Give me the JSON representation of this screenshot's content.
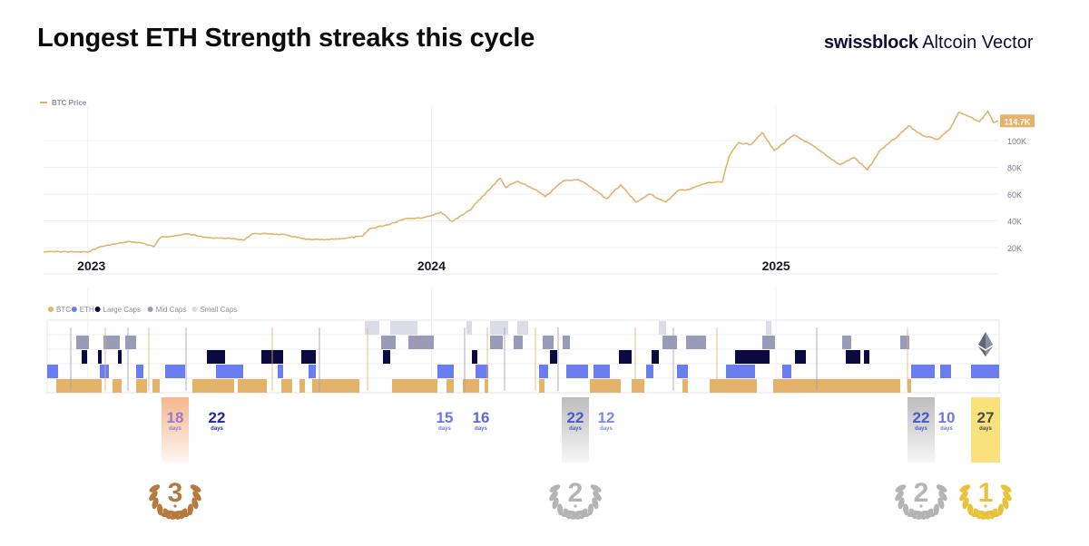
{
  "header": {
    "title": "Longest ETH Strength streaks this cycle",
    "brand_bold": "swissblock",
    "brand_rest": " Altcoin Vector"
  },
  "colors": {
    "btc": "#e3b36b",
    "eth": "#6a7ef0",
    "large_caps": "#0a0a40",
    "mid_caps": "#9a9bb6",
    "small_caps": "#dcdce6",
    "gold": "#e9c23c",
    "silver": "#b4b4b4",
    "bronze": "#b67a3e"
  },
  "chart_data": [
    {
      "type": "line",
      "series": [
        {
          "name": "BTC Price",
          "x": [
            "2022-11-15",
            "2022-12-01",
            "2022-12-31",
            "2023-01-15",
            "2023-02-01",
            "2023-02-15",
            "2023-03-01",
            "2023-03-12",
            "2023-03-20",
            "2023-04-01",
            "2023-04-15",
            "2023-05-01",
            "2023-05-15",
            "2023-06-01",
            "2023-06-15",
            "2023-06-25",
            "2023-07-15",
            "2023-08-01",
            "2023-08-20",
            "2023-09-10",
            "2023-10-01",
            "2023-10-20",
            "2023-10-27",
            "2023-11-15",
            "2023-12-05",
            "2023-12-20",
            "2024-01-01",
            "2024-01-11",
            "2024-01-23",
            "2024-02-10",
            "2024-02-28",
            "2024-03-14",
            "2024-03-20",
            "2024-04-01",
            "2024-04-20",
            "2024-05-01",
            "2024-05-20",
            "2024-06-05",
            "2024-06-20",
            "2024-07-05",
            "2024-07-20",
            "2024-08-05",
            "2024-08-20",
            "2024-09-06",
            "2024-09-20",
            "2024-10-01",
            "2024-10-20",
            "2024-11-05",
            "2024-11-12",
            "2024-11-22",
            "2024-12-05",
            "2024-12-17",
            "2024-12-30",
            "2025-01-20",
            "2025-02-05",
            "2025-02-25",
            "2025-03-10",
            "2025-03-25",
            "2025-04-08",
            "2025-04-22",
            "2025-05-10",
            "2025-05-22",
            "2025-06-05",
            "2025-06-22",
            "2025-07-05",
            "2025-07-14",
            "2025-07-25",
            "2025-08-05",
            "2025-08-14",
            "2025-08-20",
            "2025-08-25"
          ],
          "y": [
            16800,
            17000,
            16600,
            20800,
            23000,
            24500,
            23300,
            20600,
            28000,
            28400,
            30300,
            28500,
            27000,
            27000,
            25500,
            30400,
            30300,
            29300,
            26200,
            25800,
            27000,
            28500,
            34000,
            37000,
            42000,
            42000,
            44000,
            46500,
            39500,
            47500,
            61000,
            72000,
            65000,
            69500,
            63500,
            58000,
            70000,
            71000,
            64500,
            56500,
            67000,
            54000,
            60000,
            54000,
            63000,
            63500,
            68500,
            69000,
            88000,
            98500,
            97000,
            106000,
            92500,
            104000,
            98000,
            88000,
            82000,
            87500,
            78000,
            93000,
            103000,
            111000,
            104000,
            101000,
            109000,
            121000,
            118000,
            114000,
            122000,
            113500,
            114700
          ]
        }
      ],
      "y_ticks": [
        "20K",
        "40K",
        "60K",
        "80K",
        "100K"
      ],
      "x_ticks": [
        "2023",
        "2024",
        "2025"
      ],
      "last_value_label": "114.7K",
      "ylim": [
        0,
        122000
      ],
      "grid": true
    },
    {
      "type": "heatmap",
      "legend": [
        "BTC",
        "ETH",
        "Large Caps",
        "Mid Caps",
        "Small Caps"
      ]
    }
  ],
  "streaks": [
    {
      "value": "18",
      "unit": "days",
      "color": "#9a7bc0",
      "highlight": "bronze",
      "rank": "3"
    },
    {
      "value": "22",
      "unit": "days",
      "color": "#1c2aa8",
      "highlight": "",
      "rank": ""
    },
    {
      "value": "15",
      "unit": "days",
      "color": "#6a78e0",
      "highlight": "",
      "rank": ""
    },
    {
      "value": "16",
      "unit": "days",
      "color": "#5a68d8",
      "highlight": "",
      "rank": ""
    },
    {
      "value": "22",
      "unit": "days",
      "color": "#4a58c8",
      "highlight": "silver",
      "rank": "2"
    },
    {
      "value": "12",
      "unit": "days",
      "color": "#7a88e8",
      "highlight": "",
      "rank": ""
    },
    {
      "value": "22",
      "unit": "days",
      "color": "#4a58c8",
      "highlight": "silver",
      "rank": "2"
    },
    {
      "value": "10",
      "unit": "days",
      "color": "#6a78e0",
      "highlight": "",
      "rank": ""
    },
    {
      "value": "27",
      "unit": "days",
      "color": "#4a4a4a",
      "highlight": "gold",
      "rank": "1"
    }
  ]
}
